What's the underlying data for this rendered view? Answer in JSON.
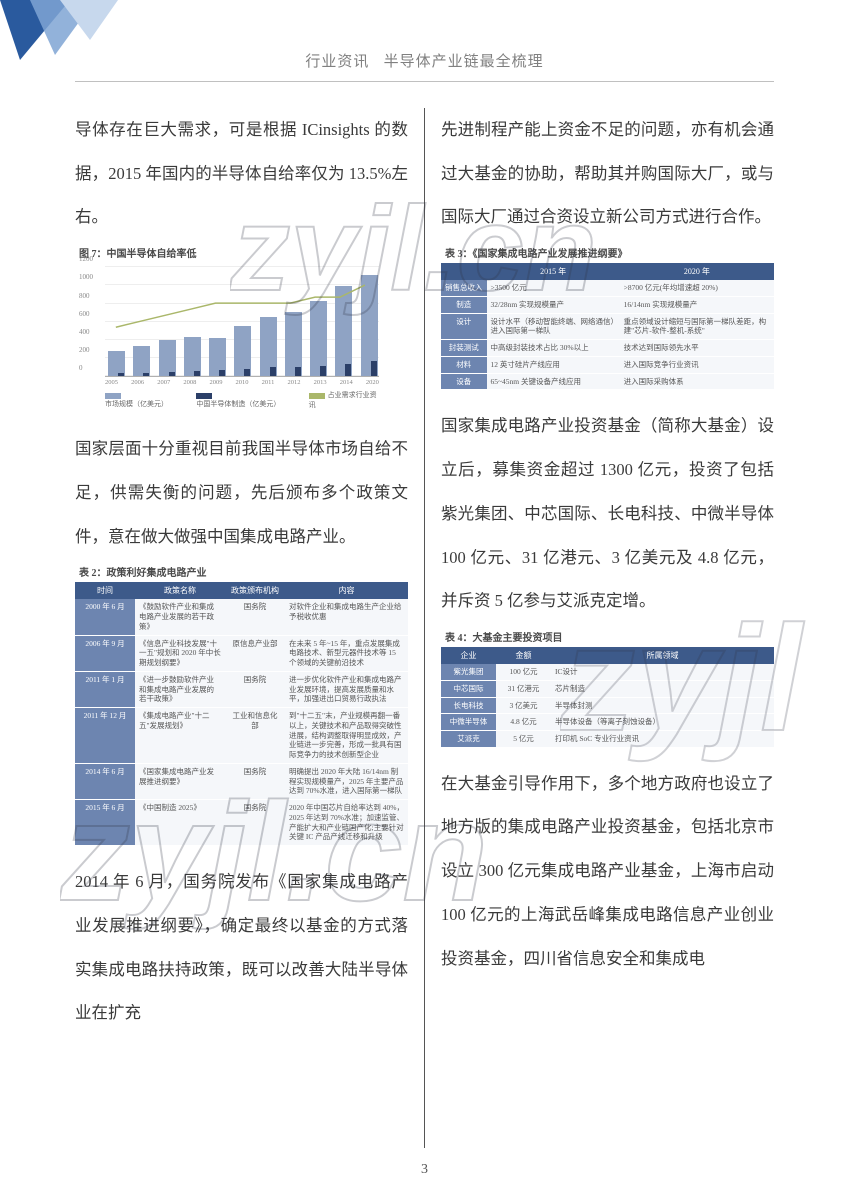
{
  "header": {
    "left": "行业资讯",
    "right": "半导体产业链最全梳理"
  },
  "page_number": "3",
  "corner": {
    "fill1": "#2a5a9e",
    "fill2": "#7fa5d4",
    "fill3": "#c7d8ed"
  },
  "watermark_text": "zyjl.cn",
  "left_column": {
    "para1": "导体存在巨大需求，可是根据 ICinsights 的数据，2015 年国内的半导体自给率仅为 13.5%左右。",
    "fig7_title": "图 7：中国半导体自给率低",
    "para2": "国家层面十分重视目前我国半导体市场自给不足，供需失衡的问题，先后颁布多个政策文件，意在做大做强中国集成电路产业。",
    "tbl2_title": "表 2：政策利好集成电路产业",
    "para3": "2014 年 6 月，国务院发布《国家集成电路产业发展推进纲要》，确定最终以基金的方式落实集成电路扶持政策，既可以改善大陆半导体业在扩充"
  },
  "right_column": {
    "para1": "先进制程产能上资金不足的问题，亦有机会通过大基金的协助，帮助其并购国际大厂，或与国际大厂通过合资设立新公司方式进行合作。",
    "tbl3_title": "表 3：《国家集成电路产业发展推进纲要》",
    "para2": "国家集成电路产业投资基金（简称大基金）设立后，募集资金超过 1300 亿元，投资了包括紫光集团、中芯国际、长电科技、中微半导体 100 亿元、31 亿港元、3 亿美元及 4.8 亿元，并斥资 5 亿参与艾派克定增。",
    "tbl4_title": "表 4：大基金主要投资项目",
    "para3": "在大基金引导作用下，多个地方政府也设立了地方版的集成电路产业投资基金，包括北京市设立 300 亿元集成电路产业基金，上海市启动 100 亿元的上海武岳峰集成电路信息产业创业投资基金，四川省信息安全和集成电"
  },
  "chart7": {
    "type": "bar+line",
    "years": [
      "2005",
      "2006",
      "2007",
      "2008",
      "2009",
      "2010",
      "2011",
      "2012",
      "2013",
      "2014",
      "2020"
    ],
    "bar1_values": [
      270,
      330,
      400,
      430,
      420,
      550,
      650,
      700,
      820,
      980,
      1100
    ],
    "bar2_values": [
      30,
      40,
      50,
      60,
      65,
      80,
      95,
      100,
      115,
      130,
      165
    ],
    "line_values_pct": [
      8,
      9,
      10,
      11,
      12,
      12,
      12,
      12,
      13,
      13,
      15
    ],
    "y_left": {
      "min": 0,
      "max": 1200,
      "step": 200
    },
    "y_right": {
      "min": 0,
      "max": 18,
      "step": 2
    },
    "bar1_color": "#8fa3c4",
    "bar2_color": "#2b3f68",
    "line_color": "#aab76a",
    "grid_color": "#eeeeee",
    "legend": [
      "市场规模（亿美元）",
      "中国半导体制造（亿美元）",
      "占业需求行业资讯"
    ],
    "background": "#ffffff"
  },
  "table2": {
    "headers": [
      "时间",
      "政策名称",
      "政策颁布机构",
      "内容"
    ],
    "rows": [
      [
        "2000 年 6 月",
        "《鼓励软件产业和集成电路产业发展的若干政策》",
        "国务院",
        "对软件企业和集成电路生产企业给予税收优惠"
      ],
      [
        "2006 年 9 月",
        "《信息产业科技发展\"十一五\"规划和 2020 年中长期规划纲要》",
        "原信息产业部",
        "在未来 5 年~15 年，重点发展集成电路技术、新型元器件技术等 15 个领域的关键前沿技术"
      ],
      [
        "2011 年 1 月",
        "《进一步鼓励软件产业和集成电路产业发展的若干政策》",
        "国务院",
        "进一步优化软件产业和集成电路产业发展环境，提高发展质量和水平，加强进出口贸易行政执法"
      ],
      [
        "2011 年 12 月",
        "《集成电路产业\"十二五\"发展规划》",
        "工业和信息化部",
        "到\"十二五\"末，产业规模再翻一番以上，关键技术和产品取得突破性进展，结构调整取得明显成效，产业链进一步完善，形成一批具有国际竞争力的技术创新型企业"
      ],
      [
        "2014 年 6 月",
        "《国家集成电路产业发展推进纲要》",
        "国务院",
        "明确提出 2020 年大陆 16/14nm 制程实现规模量产，2025 年主要产品达到 70%水准，进入国际第一梯队"
      ],
      [
        "2015 年 6 月",
        "《中国制造 2025》",
        "国务院",
        "2020 年中国芯片自给率达到 40%，2025 年达到 70%水准；加速监管、产能扩大和产业链国产化;主要针对关键 IC 产品产线迁移和升级"
      ]
    ],
    "header_bg": "#3d5a8a",
    "row_label_bg": "#6d85b0"
  },
  "table3": {
    "headers": [
      "",
      "2015 年",
      "2020 年"
    ],
    "rows": [
      [
        "销售总收入",
        ">3500 亿元",
        ">8700 亿元(年均增速超 20%)"
      ],
      [
        "制造",
        "32/28nm 实现规模量产",
        "16/14nm 实现规模量产"
      ],
      [
        "设计",
        "设计水平（移动智能终端、网络通信）进入国际第一梯队",
        "重点领域设计缩短与国际第一梯队差距，构建\"芯片-软件-整机-系统\""
      ],
      [
        "封装测试",
        "中高级封装技术占比 30%以上",
        "技术达到国际领先水平"
      ],
      [
        "材料",
        "12 英寸硅片产线应用",
        "进入国际竞争行业资讯"
      ],
      [
        "设备",
        "65~45nm 关键设备产线应用",
        "进入国际采购体系"
      ]
    ]
  },
  "table4": {
    "headers": [
      "企业",
      "金额",
      "所属领域"
    ],
    "rows": [
      [
        "紫光集团",
        "100 亿元",
        "IC设计"
      ],
      [
        "中芯国际",
        "31 亿港元",
        "芯片制造"
      ],
      [
        "长电科技",
        "3 亿美元",
        "半导体封测"
      ],
      [
        "中微半导体",
        "4.8 亿元",
        "半导体设备（等离子刻蚀设备）"
      ],
      [
        "艾派克",
        "5 亿元",
        "打印机 SoC 专业行业资讯"
      ]
    ]
  }
}
